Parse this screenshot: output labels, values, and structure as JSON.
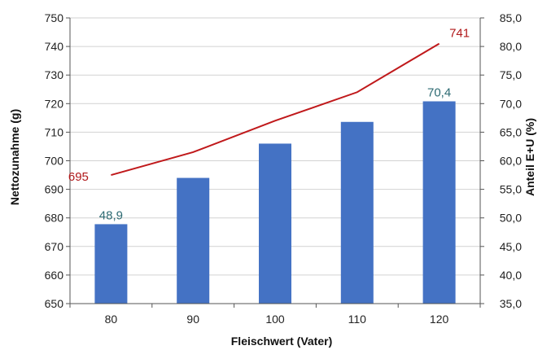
{
  "chart_data": {
    "type": "bar+line",
    "categories": [
      "80",
      "90",
      "100",
      "110",
      "120"
    ],
    "xlabel": "Fleischwert (Vater)",
    "ylabel_left": "Nettozunahme (g)",
    "ylabel_right": "Anteil E+U (%)",
    "ylim_left": [
      650,
      750
    ],
    "ylim_right": [
      35,
      85
    ],
    "yticks_left": [
      "650",
      "660",
      "670",
      "680",
      "690",
      "700",
      "710",
      "720",
      "730",
      "740",
      "750"
    ],
    "yticks_right": [
      "35,0",
      "40,0",
      "45,0",
      "50,0",
      "55,0",
      "60,0",
      "65,0",
      "70,0",
      "75,0",
      "80,0",
      "85,0"
    ],
    "grid": true,
    "series": [
      {
        "kind": "bar",
        "axis": "right",
        "values": [
          48.9,
          57.0,
          63.0,
          66.8,
          70.4
        ],
        "labels": [
          "48,9",
          "",
          "",
          "",
          "70,4"
        ],
        "color": "#4472c4"
      },
      {
        "kind": "line",
        "axis": "left",
        "values": [
          695,
          703,
          714,
          724,
          741
        ],
        "labels": [
          "695",
          "",
          "",
          "",
          "741"
        ],
        "color": "#c0191b"
      }
    ]
  }
}
